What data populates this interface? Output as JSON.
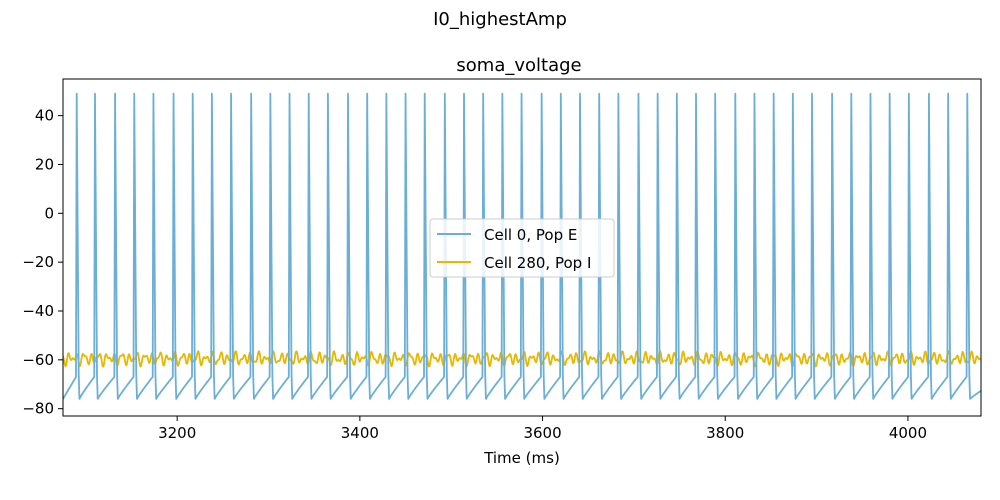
{
  "figure": {
    "suptitle": "I0_highestAmp"
  },
  "chart_data": {
    "type": "line",
    "title": "soma_voltage",
    "xlabel": "Time (ms)",
    "ylabel": "",
    "xlim": [
      3075,
      4080
    ],
    "ylim": [
      -83,
      55
    ],
    "x_ticks": [
      3200,
      3400,
      3600,
      3800,
      4000
    ],
    "y_ticks": [
      -80,
      -60,
      -40,
      -20,
      0,
      20,
      40
    ],
    "grid": false,
    "legend": {
      "placement": "center",
      "entries": [
        "Cell 0, Pop E",
        "Cell 280, Pop I"
      ]
    },
    "series": [
      {
        "name": "Cell 0, Pop E",
        "color": "#6baed6",
        "behavior": "regular spiking",
        "spike_peak_mV": 49,
        "trough_mV": -76,
        "pre_spike_mV": -67,
        "spike_times_ms": [
          3090,
          3110,
          3132,
          3153,
          3174,
          3196,
          3217,
          3238,
          3259,
          3281,
          3302,
          3323,
          3344,
          3365,
          3387,
          3408,
          3429,
          3450,
          3471,
          3493,
          3514,
          3535,
          3556,
          3577,
          3599,
          3620,
          3641,
          3662,
          3683,
          3705,
          3726,
          3747,
          3768,
          3789,
          3811,
          3832,
          3853,
          3874,
          3895,
          3917,
          3938,
          3959,
          3980,
          4001,
          4023,
          4044,
          4065
        ]
      },
      {
        "name": "Cell 280, Pop I",
        "color": "#e6b800",
        "behavior": "subthreshold oscillation",
        "mean_mV": -59.5,
        "min_mV": -63.5,
        "max_mV": -56.5
      }
    ]
  }
}
